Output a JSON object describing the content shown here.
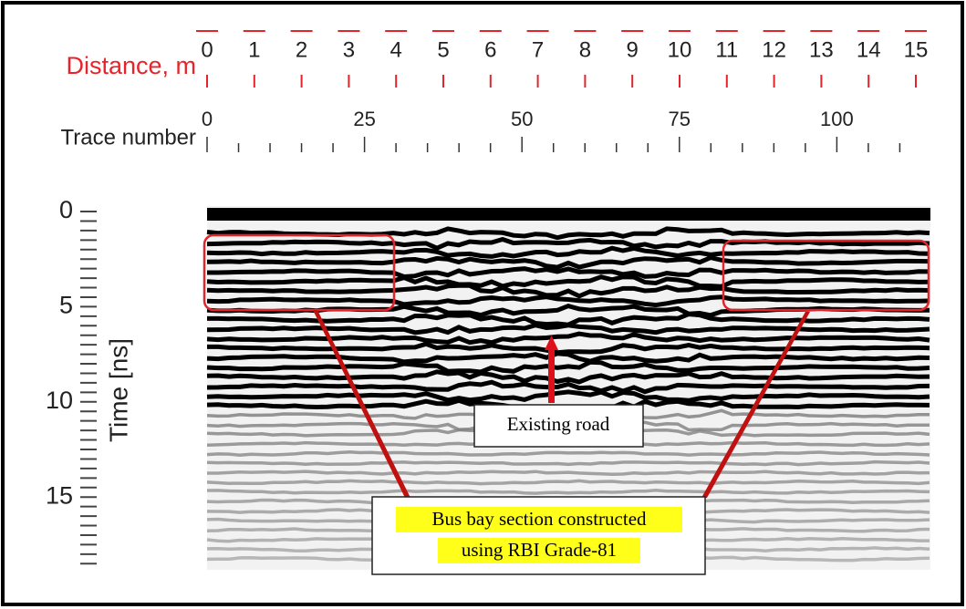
{
  "distance_axis": {
    "label": "Distance, m",
    "ticks": [
      "0",
      "1",
      "2",
      "3",
      "4",
      "5",
      "6",
      "7",
      "8",
      "9",
      "10",
      "11",
      "12",
      "13",
      "14",
      "15"
    ]
  },
  "trace_axis": {
    "label": "Trace number",
    "ticks": [
      "0",
      "25",
      "50",
      "75",
      "100"
    ]
  },
  "time_axis": {
    "label": "Time [ns]",
    "ticks": [
      "0",
      "5",
      "10",
      "15"
    ]
  },
  "annotations": {
    "existing_road": "Existing road",
    "bus_bay": [
      "Bus bay section constructed",
      "using RBI Grade-81"
    ]
  }
}
